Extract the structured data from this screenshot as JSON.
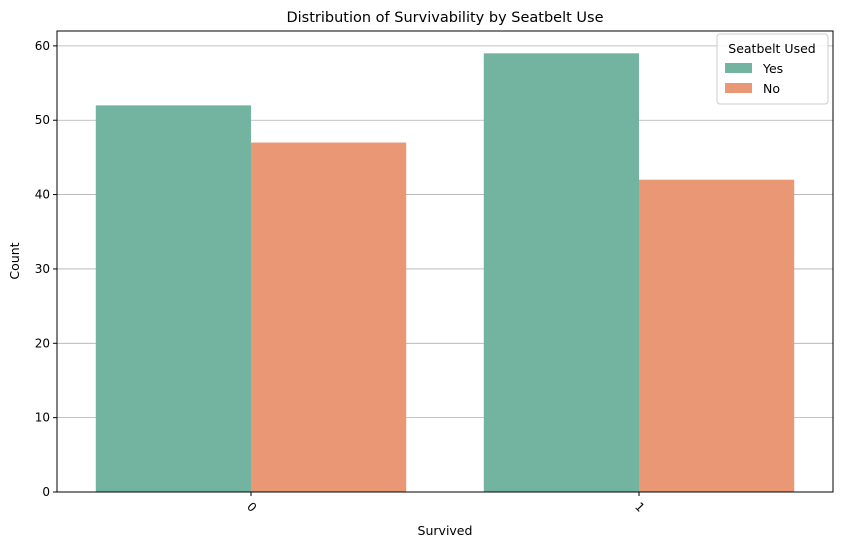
{
  "chart_data": {
    "type": "bar",
    "title": "Distribution of Survivability by Seatbelt Use",
    "xlabel": "Survived",
    "ylabel": "Count",
    "categories": [
      "0",
      "1"
    ],
    "series": [
      {
        "name": "Yes",
        "values": [
          52,
          59
        ],
        "color": "#72b4a0"
      },
      {
        "name": "No",
        "values": [
          47,
          42
        ],
        "color": "#e99775"
      }
    ],
    "ylim": [
      0,
      62
    ],
    "yticks": [
      0,
      10,
      20,
      30,
      40,
      50,
      60
    ],
    "grid": "y",
    "legend": {
      "title": "Seatbelt Used",
      "placement": "top-right"
    }
  }
}
